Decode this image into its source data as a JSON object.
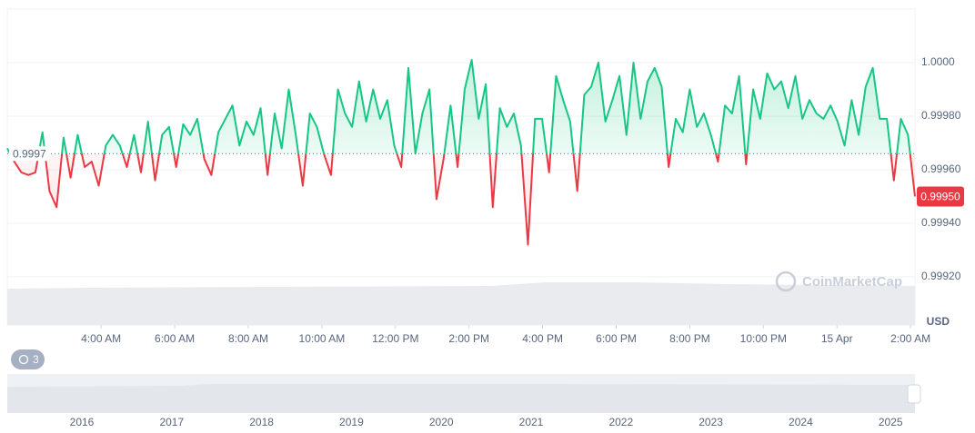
{
  "chart_data": {
    "type": "line",
    "currency": "USD",
    "watermark": "CoinMarketCap",
    "history_badge": "3",
    "baseline": {
      "value": 0.99966,
      "label": "0.9997"
    },
    "last_price": {
      "value": 0.9995,
      "label": "0.99950"
    },
    "up_color": "#16c784",
    "down_color": "#ea3943",
    "xlim": [
      1.45,
      26.12
    ],
    "xticks": [
      {
        "value": 4,
        "label": "4:00 AM"
      },
      {
        "value": 6,
        "label": "6:00 AM"
      },
      {
        "value": 8,
        "label": "8:00 AM"
      },
      {
        "value": 10,
        "label": "10:00 AM"
      },
      {
        "value": 12,
        "label": "12:00 PM"
      },
      {
        "value": 14,
        "label": "2:00 PM"
      },
      {
        "value": 16,
        "label": "4:00 PM"
      },
      {
        "value": 18,
        "label": "6:00 PM"
      },
      {
        "value": 20,
        "label": "8:00 PM"
      },
      {
        "value": 22,
        "label": "10:00 PM"
      },
      {
        "value": 24,
        "label": "15 Apr"
      },
      {
        "value": 26,
        "label": "2:00 AM"
      }
    ],
    "ylim": [
      0.99902,
      1.0002
    ],
    "yticks": [
      {
        "value": 1.0,
        "label": "1.0000"
      },
      {
        "value": 0.9998,
        "label": "0.99980"
      },
      {
        "value": 0.9996,
        "label": "0.99960"
      },
      {
        "value": 0.9994,
        "label": "0.99940"
      },
      {
        "value": 0.9992,
        "label": "0.99920"
      }
    ],
    "grid": true,
    "values": [
      0.99968,
      0.99963,
      0.99959,
      0.99958,
      0.99959,
      0.99974,
      0.99952,
      0.99946,
      0.99972,
      0.99957,
      0.99973,
      0.99961,
      0.99963,
      0.99954,
      0.99969,
      0.99973,
      0.99969,
      0.99961,
      0.99973,
      0.99959,
      0.99978,
      0.99956,
      0.99973,
      0.99976,
      0.99961,
      0.99977,
      0.99973,
      0.99979,
      0.99964,
      0.99958,
      0.99974,
      0.99979,
      0.99984,
      0.99969,
      0.99978,
      0.99973,
      0.99983,
      0.99958,
      0.99981,
      0.99968,
      0.9999,
      0.99973,
      0.99954,
      0.99981,
      0.99976,
      0.99966,
      0.99958,
      0.9999,
      0.99981,
      0.99976,
      0.99993,
      0.99978,
      0.9999,
      0.99979,
      0.99986,
      0.99969,
      0.99961,
      0.99998,
      0.99966,
      0.99981,
      0.9999,
      0.99949,
      0.99964,
      0.99984,
      0.99961,
      0.9999,
      1.00001,
      0.99979,
      0.99992,
      0.99946,
      0.99983,
      0.99976,
      0.99981,
      0.99969,
      0.99932,
      0.99979,
      0.99979,
      0.99959,
      0.99995,
      0.99986,
      0.99978,
      0.99952,
      0.99988,
      0.99991,
      1.0,
      0.99978,
      0.99986,
      0.99995,
      0.99973,
      1.0,
      0.99979,
      0.99993,
      0.99998,
      0.99991,
      0.99961,
      0.99979,
      0.99974,
      0.9999,
      0.99976,
      0.99981,
      0.99973,
      0.99963,
      0.99984,
      0.99981,
      0.99995,
      0.99962,
      0.9999,
      0.99979,
      0.99996,
      0.9999,
      0.99993,
      0.99983,
      0.99995,
      0.99979,
      0.99986,
      0.99981,
      0.99979,
      0.99984,
      0.99978,
      0.99969,
      0.99986,
      0.99973,
      0.99991,
      0.99998,
      0.99979,
      0.99979,
      0.99956,
      0.99979,
      0.99973,
      0.9995
    ]
  },
  "navigator": {
    "labels": [
      "2016",
      "2017",
      "2018",
      "2019",
      "2020",
      "2021",
      "2022",
      "2023",
      "2024",
      "2025"
    ]
  }
}
